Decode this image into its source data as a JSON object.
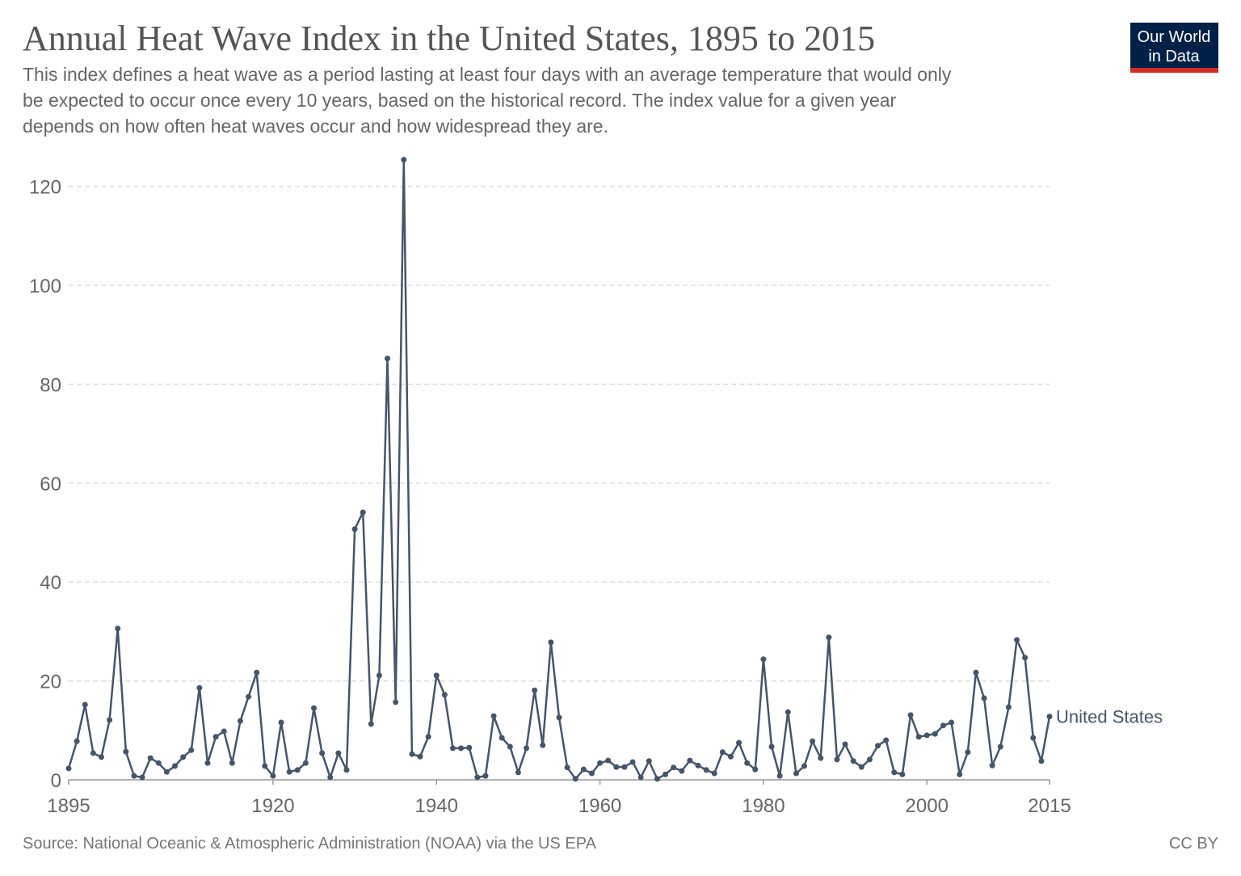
{
  "chart_data": {
    "type": "line",
    "title": "Annual Heat Wave Index in the United States, 1895 to 2015",
    "subtitle": [
      "This index defines a heat wave as a period lasting at least four days with an average temperature that would only",
      "be expected to occur once every 10 years, based on the historical record. The index value for a given year",
      "depends on how often heat waves occur and how widespread they are."
    ],
    "logo": [
      "Our World",
      "in Data"
    ],
    "source": "Source: National Oceanic & Atmospheric Administration (NOAA) via the US EPA",
    "license": "CC BY",
    "x": [
      1895,
      1896,
      1897,
      1898,
      1899,
      1900,
      1901,
      1902,
      1903,
      1904,
      1905,
      1906,
      1907,
      1908,
      1909,
      1910,
      1911,
      1912,
      1913,
      1914,
      1915,
      1916,
      1917,
      1918,
      1919,
      1920,
      1921,
      1922,
      1923,
      1924,
      1925,
      1926,
      1927,
      1928,
      1929,
      1930,
      1931,
      1932,
      1933,
      1934,
      1935,
      1936,
      1937,
      1938,
      1939,
      1940,
      1941,
      1942,
      1943,
      1944,
      1945,
      1946,
      1947,
      1948,
      1949,
      1950,
      1951,
      1952,
      1953,
      1954,
      1955,
      1956,
      1957,
      1958,
      1959,
      1960,
      1961,
      1962,
      1963,
      1964,
      1965,
      1966,
      1967,
      1968,
      1969,
      1970,
      1971,
      1972,
      1973,
      1974,
      1975,
      1976,
      1977,
      1978,
      1979,
      1980,
      1981,
      1982,
      1983,
      1984,
      1985,
      1986,
      1987,
      1988,
      1989,
      1990,
      1991,
      1992,
      1993,
      1994,
      1995,
      1996,
      1997,
      1998,
      1999,
      2000,
      2001,
      2002,
      2003,
      2004,
      2005,
      2006,
      2007,
      2008,
      2009,
      2010,
      2011,
      2012,
      2013,
      2014,
      2015
    ],
    "series": [
      {
        "name": "United States",
        "color": "#45556b",
        "values": [
          2.3,
          7.8,
          15.2,
          5.4,
          4.6,
          12.1,
          30.6,
          5.7,
          0.8,
          0.5,
          4.4,
          3.4,
          1.6,
          2.8,
          4.6,
          6.0,
          18.6,
          3.4,
          8.7,
          9.8,
          3.4,
          11.9,
          16.8,
          21.7,
          2.8,
          0.8,
          11.6,
          1.6,
          2.0,
          3.4,
          14.5,
          5.4,
          0.5,
          5.4,
          2.0,
          50.7,
          54.1,
          11.3,
          21.1,
          85.2,
          15.7,
          125.4,
          5.2,
          4.7,
          8.7,
          21.1,
          17.2,
          6.4,
          6.4,
          6.5,
          0.5,
          0.8,
          12.9,
          8.5,
          6.7,
          1.5,
          6.4,
          18.1,
          7.0,
          27.8,
          12.6,
          2.5,
          0.2,
          2.1,
          1.3,
          3.4,
          3.9,
          2.6,
          2.6,
          3.6,
          0.5,
          3.8,
          0.2,
          1.1,
          2.5,
          1.8,
          3.9,
          2.9,
          2.0,
          1.3,
          5.6,
          4.7,
          7.5,
          3.4,
          2.1,
          24.4,
          6.7,
          0.8,
          13.7,
          1.3,
          2.8,
          7.8,
          4.4,
          28.8,
          4.1,
          7.2,
          3.8,
          2.6,
          4.1,
          6.9,
          8.0,
          1.5,
          1.1,
          13.1,
          8.7,
          9.0,
          9.3,
          11.0,
          11.6,
          1.1,
          5.6,
          21.7,
          16.5,
          2.9,
          6.7,
          14.7,
          28.3,
          24.7,
          8.5,
          3.8,
          12.8
        ]
      }
    ],
    "xlim": [
      1895,
      2015
    ],
    "xticks": [
      1895,
      1920,
      1940,
      1960,
      1980,
      2000,
      2015
    ],
    "ylim": [
      0,
      126
    ],
    "yticks": [
      0,
      20,
      40,
      60,
      80,
      100,
      120
    ],
    "grid": true
  }
}
